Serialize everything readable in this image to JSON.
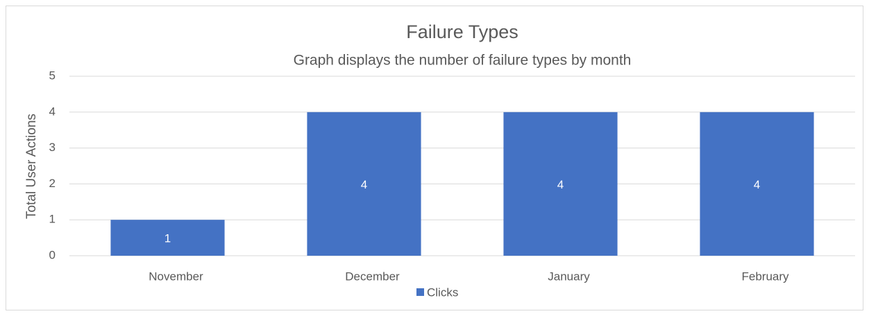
{
  "chart_data": {
    "type": "bar",
    "title": "Failure Types",
    "subtitle": "Graph displays the number of failure types by month",
    "y_label": "Total User Actions",
    "categories": [
      "November",
      "December",
      "January",
      "February"
    ],
    "series": [
      {
        "name": "Clicks",
        "color": "#4472c4",
        "values": [
          1,
          4,
          4,
          4
        ]
      }
    ],
    "ylim": [
      0,
      5
    ],
    "yticks": [
      0,
      1,
      2,
      3,
      4,
      5
    ],
    "grid": true,
    "legend": "bottom",
    "data_labels": true
  }
}
